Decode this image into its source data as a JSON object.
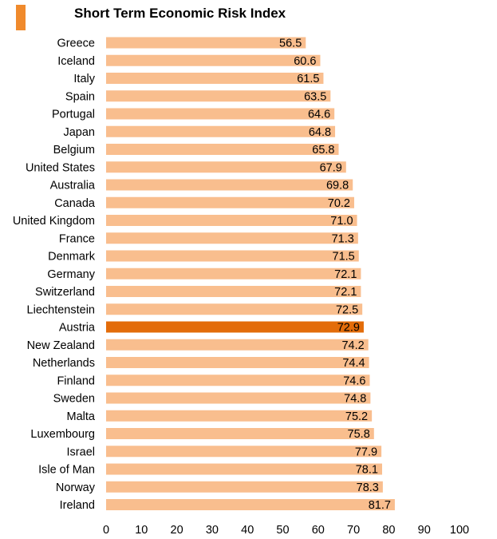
{
  "title": "Short Term Economic Risk Index",
  "colors": {
    "bar": "#F9BE8E",
    "highlight": "#E36C0A",
    "title_marker": "#F08A2C",
    "text": "#000000"
  },
  "chart_data": {
    "type": "bar",
    "orientation": "horizontal",
    "title": "Short Term Economic Risk Index",
    "xlabel": "",
    "ylabel": "",
    "xlim": [
      0,
      100
    ],
    "x_ticks": [
      0,
      10,
      20,
      30,
      40,
      50,
      60,
      70,
      80,
      90,
      100
    ],
    "grid": false,
    "legend": "none",
    "highlighted_category": "Austria",
    "categories": [
      "Greece",
      "Iceland",
      "Italy",
      "Spain",
      "Portugal",
      "Japan",
      "Belgium",
      "United States",
      "Australia",
      "Canada",
      "United Kingdom",
      "France",
      "Denmark",
      "Germany",
      "Switzerland",
      "Liechtenstein",
      "Austria",
      "New Zealand",
      "Netherlands",
      "Finland",
      "Sweden",
      "Malta",
      "Luxembourg",
      "Israel",
      "Isle of Man",
      "Norway",
      "Ireland"
    ],
    "values": [
      56.5,
      60.6,
      61.5,
      63.5,
      64.6,
      64.8,
      65.8,
      67.9,
      69.8,
      70.2,
      71.0,
      71.3,
      71.5,
      72.1,
      72.1,
      72.5,
      72.9,
      74.2,
      74.4,
      74.6,
      74.8,
      75.2,
      75.8,
      77.9,
      78.1,
      78.3,
      81.7
    ],
    "value_labels": [
      "56.5",
      "60.6",
      "61.5",
      "63.5",
      "64.6",
      "64.8",
      "65.8",
      "67.9",
      "69.8",
      "70.2",
      "71.0",
      "71.3",
      "71.5",
      "72.1",
      "72.1",
      "72.5",
      "72.9",
      "74.2",
      "74.4",
      "74.6",
      "74.8",
      "75.2",
      "75.8",
      "77.9",
      "78.1",
      "78.3",
      "81.7"
    ]
  }
}
